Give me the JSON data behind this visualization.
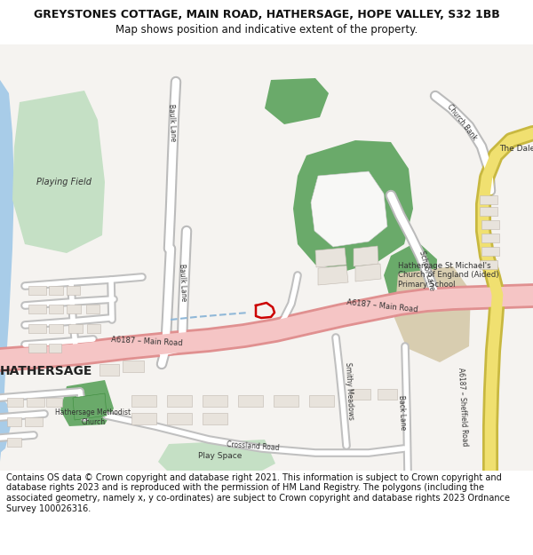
{
  "title_line1": "GREYSTONES COTTAGE, MAIN ROAD, HATHERSAGE, HOPE VALLEY, S32 1BB",
  "title_line2": "Map shows position and indicative extent of the property.",
  "footer": "Contains OS data © Crown copyright and database right 2021. This information is subject to Crown copyright and database rights 2023 and is reproduced with the permission of HM Land Registry. The polygons (including the associated geometry, namely x, y co-ordinates) are subject to Crown copyright and database rights 2023 Ordnance Survey 100026316.",
  "bg_color": "#ffffff",
  "map_bg": "#f5f3f0",
  "road_main_color": "#f5c5c5",
  "road_main_stroke": "#e09090",
  "road_yellow_color": "#f0e070",
  "road_yellow_stroke": "#c8b840",
  "green_dark": "#6aaa6a",
  "green_light": "#c5e0c5",
  "water_color": "#a8cce8",
  "building_fill": "#e8e3dc",
  "building_edge": "#c0b8b0",
  "plot_color": "#cc0000",
  "text_color": "#333333",
  "title_fontsize": 9.0,
  "subtitle_fontsize": 8.5,
  "footer_fontsize": 7.0
}
